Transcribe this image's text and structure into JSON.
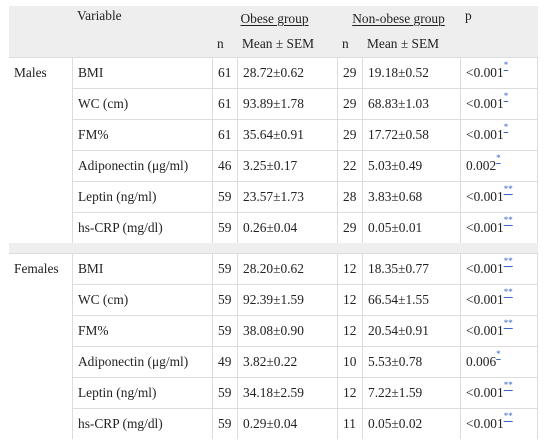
{
  "header": {
    "variable": "Variable",
    "obese_group": "Obese group",
    "nonobese_group": "Non-obese group",
    "p": "p",
    "n1": "n",
    "mean1": "Mean ± SEM",
    "n2": "n",
    "mean2": "Mean ± SEM"
  },
  "groups": [
    {
      "label": "Males",
      "rows": [
        {
          "variable": "BMI",
          "n1": "61",
          "mean1": "28.72±0.62",
          "n2": "29",
          "mean2": "19.18±0.52",
          "p": "<0.001",
          "mark": "*"
        },
        {
          "variable": "WC (cm)",
          "n1": "61",
          "mean1": "93.89±1.78",
          "n2": "29",
          "mean2": "68.83±1.03",
          "p": "<0.001",
          "mark": "*"
        },
        {
          "variable": "FM%",
          "n1": "61",
          "mean1": "35.64±0.91",
          "n2": "29",
          "mean2": "17.72±0.58",
          "p": "<0.001",
          "mark": "*"
        },
        {
          "variable": "Adiponectin (μg/ml)",
          "n1": "46",
          "mean1": "3.25±0.17",
          "n2": "22",
          "mean2": "5.03±0.49",
          "p": "0.002",
          "mark": "*"
        },
        {
          "variable": "Leptin (ng/ml)",
          "n1": "59",
          "mean1": "23.57±1.73",
          "n2": "28",
          "mean2": "3.83±0.68",
          "p": "<0.001",
          "mark": "**"
        },
        {
          "variable": "hs-CRP (mg/dl)",
          "n1": "59",
          "mean1": "0.26±0.04",
          "n2": "29",
          "mean2": "0.05±0.01",
          "p": "<0.001",
          "mark": "**"
        }
      ]
    },
    {
      "label": "Females",
      "rows": [
        {
          "variable": "BMI",
          "n1": "59",
          "mean1": "28.20±0.62",
          "n2": "12",
          "mean2": "18.35±0.77",
          "p": "<0.001",
          "mark": "**"
        },
        {
          "variable": "WC (cm)",
          "n1": "59",
          "mean1": "92.39±1.59",
          "n2": "12",
          "mean2": "66.54±1.55",
          "p": "<0.001",
          "mark": "**"
        },
        {
          "variable": "FM%",
          "n1": "59",
          "mean1": "38.08±0.90",
          "n2": "12",
          "mean2": "20.54±0.91",
          "p": "<0.001",
          "mark": "**"
        },
        {
          "variable": "Adiponectin (μg/ml)",
          "n1": "49",
          "mean1": "3.82±0.22",
          "n2": "10",
          "mean2": "5.53±0.78",
          "p": "0.006",
          "mark": "*"
        },
        {
          "variable": "Leptin (ng/ml)",
          "n1": "59",
          "mean1": "34.18±2.59",
          "n2": "12",
          "mean2": "7.22±1.59",
          "p": "<0.001",
          "mark": "**"
        },
        {
          "variable": "hs-CRP (mg/dl)",
          "n1": "59",
          "mean1": "0.29±0.04",
          "n2": "11",
          "mean2": "0.05±0.02",
          "p": "<0.001",
          "mark": "**"
        }
      ]
    }
  ]
}
